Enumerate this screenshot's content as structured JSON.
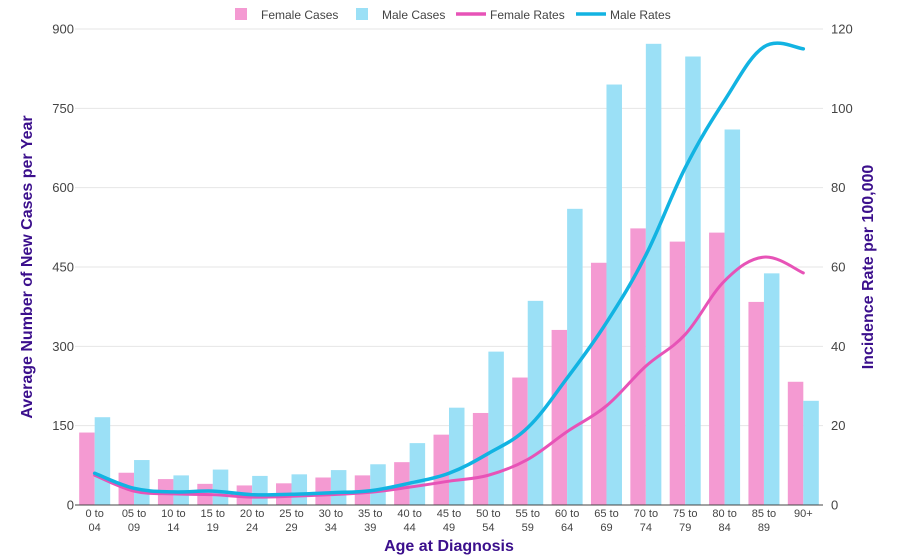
{
  "chart_data": {
    "type": "bar",
    "xlabel": "Age at Diagnosis",
    "ylabel": "Average Number of New Cases per Year",
    "y2label": "Incidence Rate per 100,000",
    "ylim": [
      0,
      900
    ],
    "y2lim": [
      0,
      120
    ],
    "yticks": [
      0,
      150,
      300,
      450,
      600,
      750,
      900
    ],
    "y2ticks": [
      0,
      20,
      40,
      60,
      80,
      100,
      120
    ],
    "grid": true,
    "legend_position": "top",
    "categories": [
      [
        "0 to",
        "04"
      ],
      [
        "05 to",
        "09"
      ],
      [
        "10 to",
        "14"
      ],
      [
        "15 to",
        "19"
      ],
      [
        "20 to",
        "24"
      ],
      [
        "25 to",
        "29"
      ],
      [
        "30 to",
        "34"
      ],
      [
        "35 to",
        "39"
      ],
      [
        "40 to",
        "44"
      ],
      [
        "45 to",
        "49"
      ],
      [
        "50 to",
        "54"
      ],
      [
        "55 to",
        "59"
      ],
      [
        "60 to",
        "64"
      ],
      [
        "65 to",
        "69"
      ],
      [
        "70 to",
        "74"
      ],
      [
        "75 to",
        "79"
      ],
      [
        "80 to",
        "84"
      ],
      [
        "85 to",
        "89"
      ],
      [
        "90+",
        ""
      ]
    ],
    "series": [
      {
        "name": "Female Cases",
        "kind": "bar",
        "axis": "left",
        "color": "#f49ad2",
        "values": [
          137,
          61,
          49,
          40,
          37,
          41,
          52,
          56,
          81,
          133,
          174,
          241,
          331,
          458,
          523,
          498,
          515,
          384,
          233
        ]
      },
      {
        "name": "Male Cases",
        "kind": "bar",
        "axis": "left",
        "color": "#9be0f6",
        "values": [
          166,
          85,
          56,
          67,
          55,
          58,
          66,
          77,
          117,
          184,
          290,
          386,
          560,
          795,
          872,
          848,
          710,
          438,
          197
        ]
      },
      {
        "name": "Female Rates",
        "kind": "line",
        "axis": "right",
        "color": "#e753b7",
        "values": [
          7.5,
          3.5,
          2.8,
          2.6,
          2.0,
          2.2,
          2.6,
          3.2,
          4.5,
          6.0,
          7.5,
          11.5,
          18.5,
          25.0,
          35.0,
          43.0,
          56.5,
          62.5,
          58.5
        ]
      },
      {
        "name": "Male Rates",
        "kind": "line",
        "axis": "right",
        "color": "#12b3e2",
        "values": [
          8.0,
          4.2,
          3.3,
          3.5,
          2.6,
          2.7,
          3.1,
          3.6,
          5.5,
          8.0,
          13.0,
          19.5,
          32.0,
          46.0,
          63.0,
          85.0,
          102.0,
          115.5,
          115.0
        ]
      }
    ]
  },
  "colors": {
    "axis_title": "#3b0f8c",
    "grid": "#e6e6e6",
    "baseline": "#444444"
  }
}
